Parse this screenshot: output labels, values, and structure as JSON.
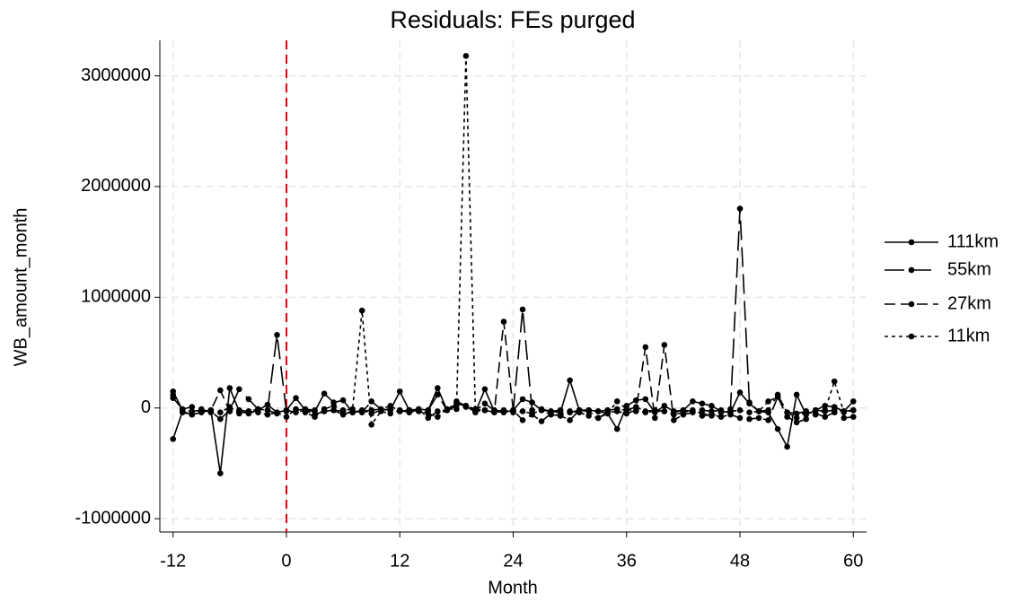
{
  "chart_data": {
    "type": "line",
    "title": "Residuals: FEs purged",
    "x_label": "Month",
    "y_label": "WB_amount_month",
    "x": [
      -12,
      -11,
      -10,
      -9,
      -8,
      -7,
      -6,
      -5,
      -4,
      -3,
      -2,
      -1,
      0,
      1,
      2,
      3,
      4,
      5,
      6,
      7,
      8,
      9,
      10,
      11,
      12,
      13,
      14,
      15,
      16,
      17,
      18,
      19,
      20,
      21,
      22,
      23,
      24,
      25,
      26,
      27,
      28,
      29,
      30,
      31,
      32,
      33,
      34,
      35,
      36,
      37,
      38,
      39,
      40,
      41,
      42,
      43,
      44,
      45,
      46,
      47,
      48,
      49,
      50,
      51,
      52,
      53,
      54,
      55,
      56,
      57,
      58,
      59,
      60
    ],
    "series": [
      {
        "name": "111km",
        "color": "#000000",
        "dash": "none",
        "values": [
          -280000,
          -30000,
          -60000,
          -40000,
          -20000,
          -590000,
          180000,
          -30000,
          -50000,
          -20000,
          30000,
          -40000,
          -20000,
          90000,
          -20000,
          -30000,
          130000,
          50000,
          70000,
          -40000,
          -30000,
          -20000,
          -10000,
          -20000,
          150000,
          -20000,
          -10000,
          -20000,
          180000,
          -20000,
          40000,
          20000,
          -40000,
          170000,
          -30000,
          -40000,
          -20000,
          80000,
          50000,
          -20000,
          -30000,
          -40000,
          250000,
          -20000,
          -20000,
          -30000,
          -50000,
          -190000,
          20000,
          70000,
          80000,
          -40000,
          20000,
          -30000,
          -20000,
          60000,
          40000,
          20000,
          -30000,
          -40000,
          140000,
          40000,
          -30000,
          -40000,
          -190000,
          -350000,
          120000,
          -60000,
          -20000,
          20000,
          10000,
          -30000,
          60000
        ]
      },
      {
        "name": "55km",
        "color": "#000000",
        "dash": "22 8",
        "values": [
          150000,
          -20000,
          -30000,
          -20000,
          -30000,
          -100000,
          -20000,
          170000,
          80000,
          -10000,
          -20000,
          660000,
          -30000,
          -20000,
          -10000,
          -20000,
          -30000,
          -20000,
          -30000,
          -40000,
          -20000,
          -50000,
          -20000,
          -10000,
          -30000,
          -20000,
          -30000,
          -20000,
          120000,
          -20000,
          20000,
          10000,
          -20000,
          40000,
          -20000,
          -30000,
          -30000,
          890000,
          -20000,
          -10000,
          -30000,
          -20000,
          -40000,
          -20000,
          -20000,
          -30000,
          -20000,
          -10000,
          -20000,
          10000,
          -30000,
          -20000,
          -30000,
          -40000,
          -20000,
          -30000,
          -20000,
          -30000,
          -20000,
          -10000,
          1800000,
          50000,
          -30000,
          -20000,
          120000,
          -40000,
          -50000,
          -30000,
          -20000,
          -30000,
          -20000,
          -30000,
          -20000
        ]
      },
      {
        "name": "27km",
        "color": "#000000",
        "dash": "12 6",
        "values": [
          90000,
          -10000,
          10000,
          -30000,
          -20000,
          160000,
          -30000,
          -20000,
          -30000,
          -10000,
          -20000,
          -50000,
          -20000,
          -40000,
          -20000,
          -60000,
          -30000,
          -20000,
          -60000,
          -30000,
          -40000,
          60000,
          -10000,
          20000,
          -30000,
          -20000,
          -10000,
          -90000,
          -30000,
          -20000,
          60000,
          20000,
          -10000,
          -20000,
          -40000,
          780000,
          -20000,
          -110000,
          -60000,
          -120000,
          -50000,
          -70000,
          -110000,
          -20000,
          -30000,
          -90000,
          -40000,
          -30000,
          -50000,
          -20000,
          550000,
          -90000,
          570000,
          -110000,
          -60000,
          -40000,
          -70000,
          -60000,
          -80000,
          -60000,
          -90000,
          -100000,
          -90000,
          -110000,
          100000,
          -80000,
          -130000,
          -100000,
          -50000,
          -80000,
          -40000,
          -90000,
          -80000
        ]
      },
      {
        "name": "11km",
        "color": "#000000",
        "dash": "4 4",
        "values": [
          120000,
          -40000,
          -60000,
          -10000,
          -40000,
          -40000,
          10000,
          -50000,
          -30000,
          -40000,
          -60000,
          -40000,
          -80000,
          -10000,
          -40000,
          -80000,
          -10000,
          20000,
          -20000,
          -10000,
          880000,
          -150000,
          -30000,
          -50000,
          -20000,
          -40000,
          -20000,
          -50000,
          -80000,
          -10000,
          -10000,
          3180000,
          -30000,
          -20000,
          -30000,
          -20000,
          -40000,
          -30000,
          -50000,
          -20000,
          -60000,
          -70000,
          -30000,
          -40000,
          -70000,
          -90000,
          -50000,
          60000,
          -10000,
          -30000,
          -40000,
          -30000,
          -30000,
          -60000,
          -40000,
          -20000,
          -50000,
          -70000,
          -40000,
          -30000,
          -20000,
          -40000,
          -30000,
          60000,
          100000,
          -40000,
          -90000,
          -30000,
          -60000,
          -20000,
          240000,
          -40000,
          -20000
        ]
      }
    ],
    "xlim": [
      -13.4,
      61.4
    ],
    "ylim": [
      -1120000,
      3320000
    ],
    "xticks": [
      -12,
      0,
      12,
      24,
      36,
      48,
      60
    ],
    "yticks": [
      -1000000,
      0,
      1000000,
      2000000,
      3000000
    ],
    "grid": true,
    "legend": "right",
    "reference_line": {
      "x": 0,
      "color": "#e8000b"
    }
  }
}
